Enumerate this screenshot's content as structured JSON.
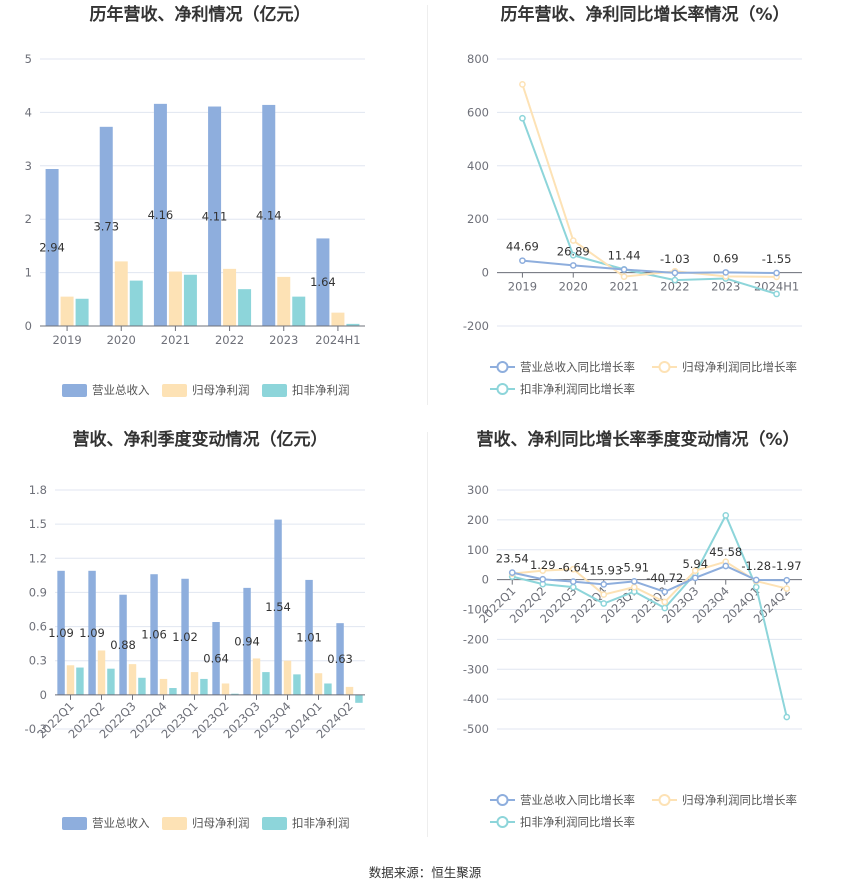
{
  "colors": {
    "revenue": "#8eaedd",
    "net_profit": "#fde2b5",
    "deducted_profit": "#8dd5da"
  },
  "legend": {
    "bar": [
      "营业总收入",
      "归母净利润",
      "扣非净利润"
    ],
    "line": [
      "营业总收入同比增长率",
      "归母净利润同比增长率",
      "扣非净利润同比增长率"
    ]
  },
  "source": "数据来源：恒生聚源",
  "chart_data": [
    {
      "type": "bar",
      "title": "历年营收、净利情况（亿元）",
      "categories": [
        "2019",
        "2020",
        "2021",
        "2022",
        "2023",
        "2024H1"
      ],
      "ylim": [
        0,
        5
      ],
      "yticks": [
        "0",
        "1",
        "2",
        "3",
        "4",
        "5"
      ],
      "series": [
        {
          "name": "营业总收入",
          "values": [
            2.94,
            3.73,
            4.16,
            4.11,
            4.14,
            1.64
          ],
          "labels": [
            "2.94",
            "3.73",
            "4.16",
            "4.11",
            "4.14",
            "1.64"
          ]
        },
        {
          "name": "归母净利润",
          "values": [
            0.55,
            1.21,
            1.02,
            1.07,
            0.92,
            0.25
          ]
        },
        {
          "name": "扣非净利润",
          "values": [
            0.51,
            0.85,
            0.96,
            0.69,
            0.55,
            0.04
          ]
        }
      ]
    },
    {
      "type": "line",
      "title": "历年营收、净利同比增长率情况（%）",
      "categories": [
        "2019",
        "2020",
        "2021",
        "2022",
        "2023",
        "2024H1"
      ],
      "ylim": [
        -200,
        800
      ],
      "yticks": [
        "-200",
        "0",
        "200",
        "400",
        "600",
        "800"
      ],
      "series": [
        {
          "name": "营业总收入同比增长率",
          "values": [
            44.69,
            26.89,
            11.44,
            -1.03,
            0.69,
            -1.55
          ],
          "labels": [
            "44.69",
            "26.89",
            "11.44",
            "-1.03",
            "0.69",
            "-1.55"
          ]
        },
        {
          "name": "归母净利润同比增长率",
          "values": [
            705,
            120,
            -15,
            5,
            -14,
            -16
          ]
        },
        {
          "name": "扣非净利润同比增长率",
          "values": [
            578,
            65,
            12,
            -28,
            -22,
            -80
          ]
        }
      ]
    },
    {
      "type": "bar",
      "title": "营收、净利季度变动情况（亿元）",
      "categories": [
        "2022Q1",
        "2022Q2",
        "2022Q3",
        "2022Q4",
        "2023Q1",
        "2023Q2",
        "2023Q3",
        "2023Q4",
        "2024Q1",
        "2024Q2"
      ],
      "ylim": [
        -0.3,
        1.8
      ],
      "yticks": [
        "-0.3",
        "0",
        "0.3",
        "0.6",
        "0.9",
        "1.2",
        "1.5",
        "1.8"
      ],
      "series": [
        {
          "name": "营业总收入",
          "values": [
            1.09,
            1.09,
            0.88,
            1.06,
            1.02,
            0.64,
            0.94,
            1.54,
            1.01,
            0.63
          ],
          "labels": [
            "1.09",
            "1.09",
            "0.88",
            "1.06",
            "1.02",
            "0.64",
            "0.94",
            "1.54",
            "1.01",
            "0.63"
          ]
        },
        {
          "name": "归母净利润",
          "values": [
            0.26,
            0.39,
            0.27,
            0.14,
            0.2,
            0.1,
            0.32,
            0.3,
            0.19,
            0.07
          ]
        },
        {
          "name": "扣非净利润",
          "values": [
            0.24,
            0.23,
            0.15,
            0.06,
            0.14,
            0.01,
            0.2,
            0.18,
            0.1,
            -0.07
          ]
        }
      ]
    },
    {
      "type": "line",
      "title": "营收、净利同比增长率季度变动情况（%）",
      "categories": [
        "2022Q1",
        "2022Q2",
        "2022Q3",
        "2022Q4",
        "2023Q1",
        "2023Q2",
        "2023Q3",
        "2023Q4",
        "2024Q1",
        "2024Q2"
      ],
      "ylim": [
        -500,
        300
      ],
      "yticks": [
        "-500",
        "-400",
        "-300",
        "-200",
        "-100",
        "0",
        "100",
        "200",
        "300"
      ],
      "series": [
        {
          "name": "营业总收入同比增长率",
          "values": [
            23.54,
            1.29,
            -6.64,
            -15.93,
            -5.91,
            -40.72,
            5.94,
            45.58,
            -1.28,
            -1.97
          ],
          "labels": [
            "23.54",
            "1.29",
            "-6.64",
            "-15.93",
            "-5.91",
            "-40.72",
            "5.94",
            "45.58",
            "-1.28",
            "-1.97"
          ]
        },
        {
          "name": "归母净利润同比增长率",
          "values": [
            20,
            30,
            35,
            -50,
            -25,
            -75,
            30,
            60,
            -5,
            -30
          ]
        },
        {
          "name": "扣非净利润同比增长率",
          "values": [
            10,
            -15,
            -25,
            -80,
            -40,
            -95,
            20,
            215,
            -25,
            -460
          ]
        }
      ]
    }
  ]
}
